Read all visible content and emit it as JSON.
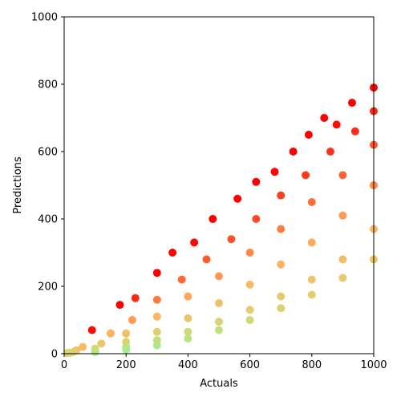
{
  "chart_data": {
    "type": "scatter",
    "xlabel": "Actuals",
    "ylabel": "Predictions",
    "xlim": [
      0,
      1000
    ],
    "ylim": [
      0,
      1000
    ],
    "xticks": [
      0,
      200,
      400,
      600,
      800,
      1000
    ],
    "yticks": [
      0,
      200,
      400,
      600,
      800,
      1000
    ],
    "grid": false,
    "colormap": [
      "#80ff99",
      "#e0d070",
      "#ffb060",
      "#ff6030",
      "#ff0000"
    ],
    "series": [
      {
        "x": [
          90,
          180,
          230,
          300,
          350,
          420,
          480,
          560,
          620,
          680,
          740,
          790,
          840,
          880,
          930,
          1000
        ],
        "y": [
          70,
          145,
          165,
          240,
          300,
          330,
          400,
          460,
          510,
          540,
          600,
          650,
          700,
          680,
          745,
          790
        ]
      },
      {
        "x": [
          60,
          150,
          220,
          300,
          380,
          460,
          540,
          620,
          700,
          780,
          860,
          940,
          1000
        ],
        "y": [
          20,
          60,
          100,
          160,
          220,
          280,
          340,
          400,
          470,
          530,
          600,
          660,
          720
        ]
      },
      {
        "x": [
          40,
          120,
          200,
          300,
          400,
          500,
          600,
          700,
          800,
          900,
          1000
        ],
        "y": [
          10,
          30,
          60,
          110,
          170,
          230,
          300,
          370,
          450,
          530,
          620
        ]
      },
      {
        "x": [
          30,
          100,
          200,
          300,
          400,
          500,
          600,
          700,
          800,
          900,
          1000
        ],
        "y": [
          5,
          15,
          35,
          65,
          105,
          150,
          205,
          265,
          330,
          410,
          500
        ]
      },
      {
        "x": [
          20,
          100,
          200,
          300,
          400,
          500,
          600,
          700,
          800,
          900,
          1000
        ],
        "y": [
          3,
          8,
          20,
          40,
          65,
          95,
          130,
          170,
          220,
          280,
          370
        ]
      },
      {
        "x": [
          10,
          100,
          200,
          300,
          400,
          500,
          600,
          700,
          800,
          900,
          1000
        ],
        "y": [
          2,
          5,
          12,
          25,
          45,
          70,
          100,
          135,
          175,
          225,
          280
        ]
      }
    ]
  }
}
